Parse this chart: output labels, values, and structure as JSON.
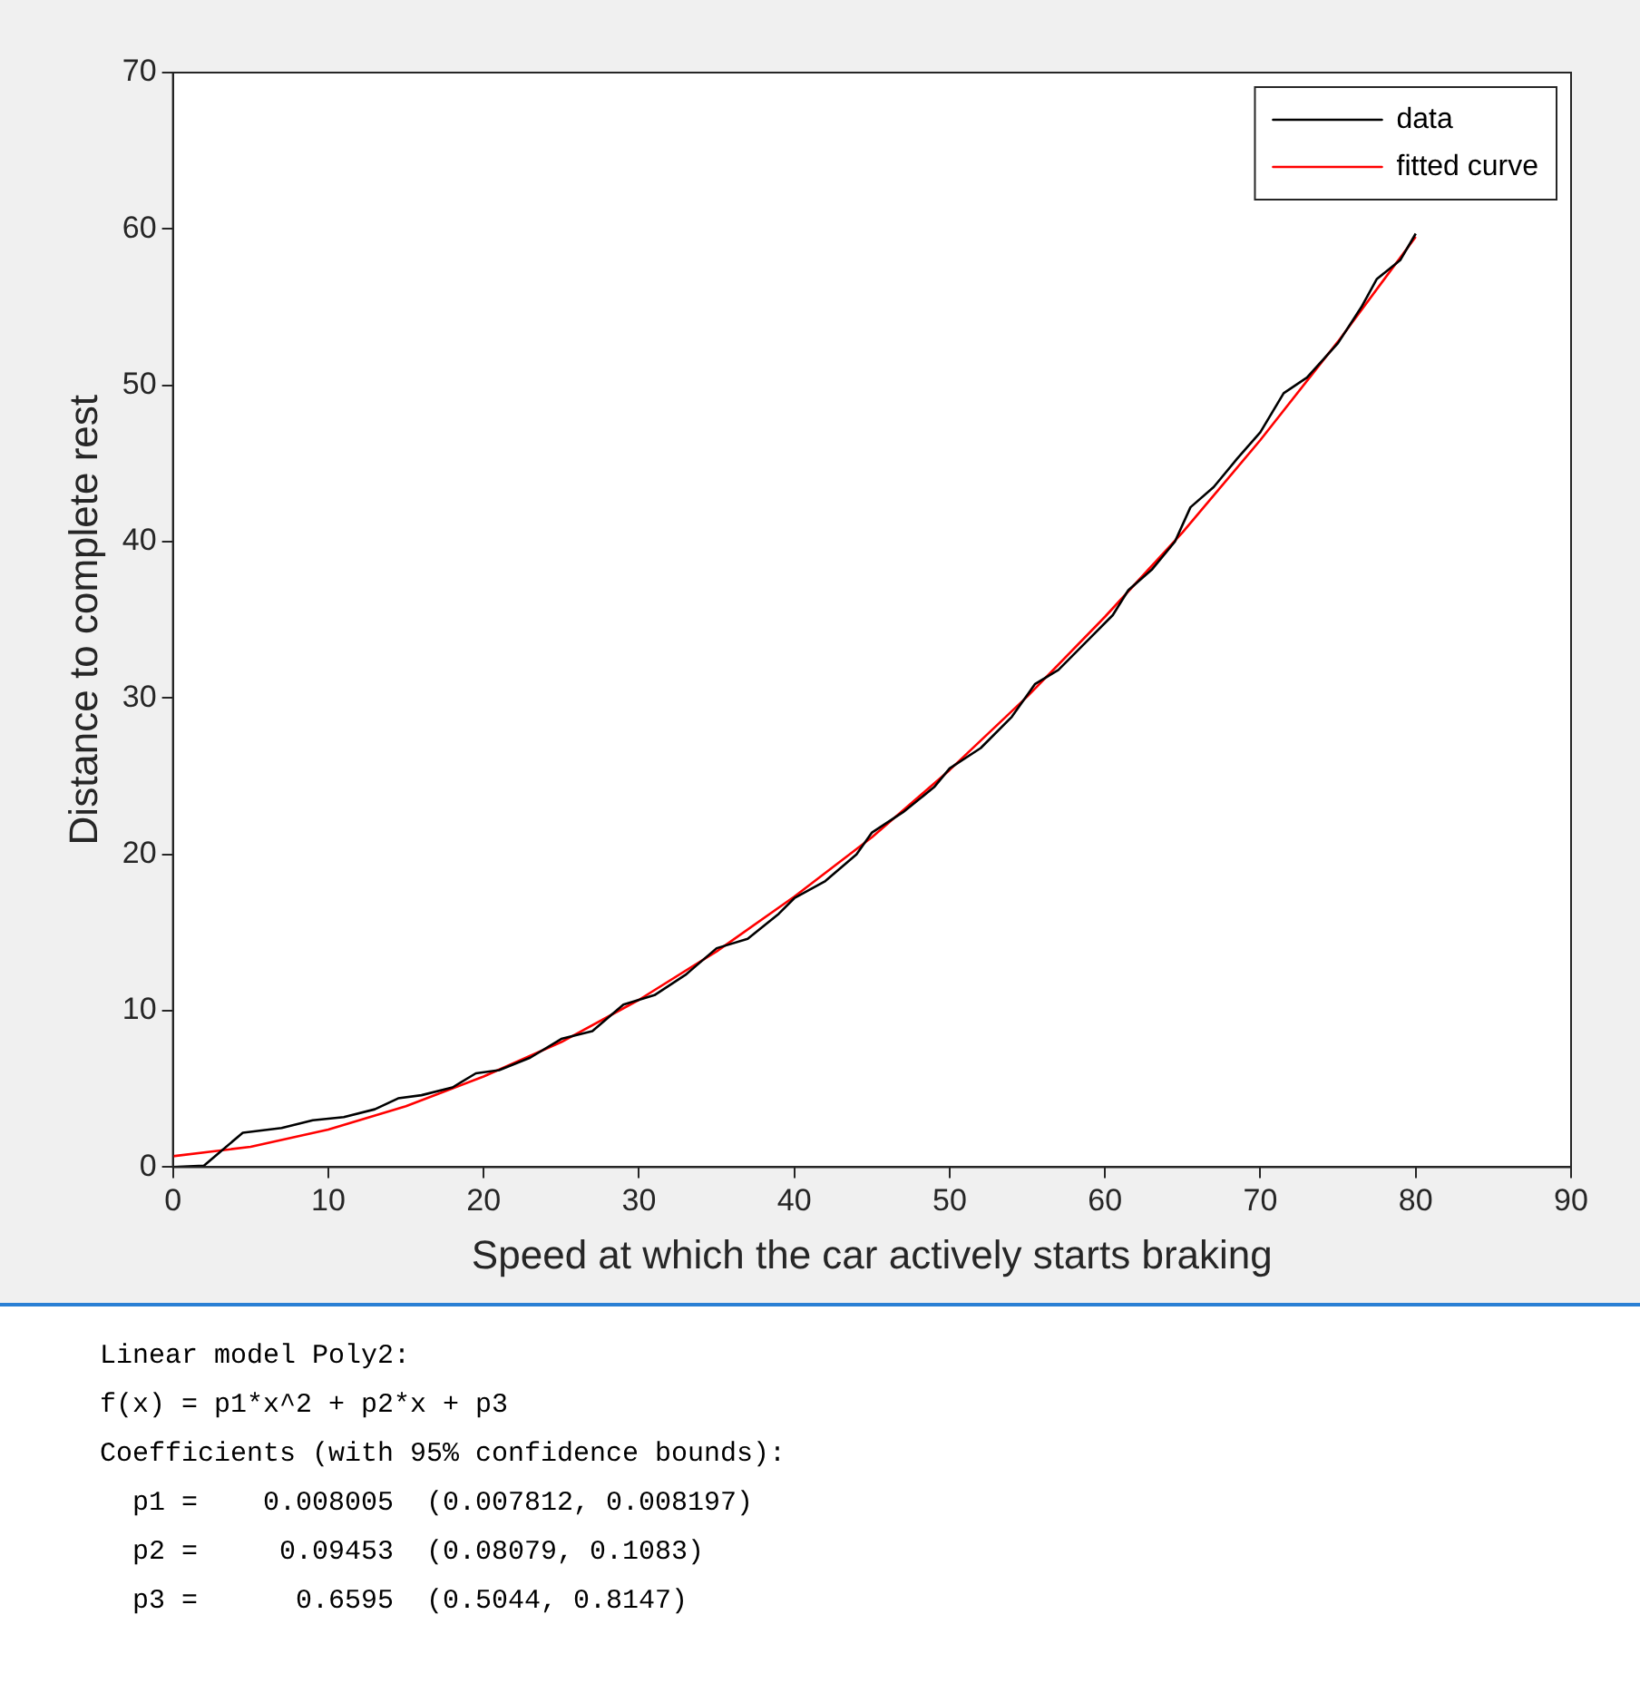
{
  "chart_data": {
    "type": "line",
    "xlabel": "Speed at which the car actively starts braking",
    "ylabel": "Distance to complete rest",
    "xlim": [
      0,
      90
    ],
    "xticks": [
      0,
      10,
      20,
      30,
      40,
      50,
      60,
      70,
      80,
      90
    ],
    "ylim": [
      0,
      70
    ],
    "yticks": [
      0,
      10,
      20,
      30,
      40,
      50,
      60,
      70
    ],
    "grid": false,
    "legend": "top right",
    "marker": "none",
    "series": [
      {
        "name": "data",
        "color": "#000000",
        "x": [
          0,
          2,
          4.5,
          7,
          9,
          11,
          13,
          14.5,
          16,
          18,
          19.5,
          21,
          23,
          25,
          27,
          29,
          31,
          33,
          35,
          37,
          39,
          40,
          42,
          44,
          45,
          47,
          49,
          50,
          52,
          54,
          55.5,
          57,
          59,
          60.5,
          61.5,
          63,
          64.5,
          65.5,
          67,
          68.5,
          70,
          71.5,
          73,
          75,
          76.5,
          77.5,
          79,
          80
        ],
        "values": [
          0,
          0.1,
          2.2,
          2.5,
          3.0,
          3.2,
          3.7,
          4.4,
          4.6,
          5.1,
          6.0,
          6.2,
          7.0,
          8.2,
          8.7,
          10.4,
          11.0,
          12.3,
          14.0,
          14.6,
          16.2,
          17.2,
          18.3,
          20.0,
          21.4,
          22.7,
          24.3,
          25.5,
          26.8,
          28.8,
          30.9,
          31.8,
          33.8,
          35.3,
          36.9,
          38.2,
          40.0,
          42.2,
          43.5,
          45.3,
          47.0,
          49.5,
          50.5,
          52.7,
          55.0,
          56.8,
          58.0,
          59.7
        ]
      },
      {
        "name": "fitted curve",
        "color": "#ff0000",
        "x": [
          0,
          5,
          10,
          15,
          20,
          25,
          30,
          35,
          40,
          45,
          50,
          55,
          60,
          65,
          70,
          75,
          80
        ],
        "values": [
          0.7,
          1.3,
          2.4,
          3.9,
          5.8,
          8.0,
          10.7,
          13.8,
          17.3,
          21.1,
          25.4,
          30.1,
          35.2,
          40.6,
          46.5,
          52.8,
          59.5
        ]
      }
    ],
    "annotations": [
      "Linear model Poly2:",
      "f(x) = p1*x^2 + p2*x + p3",
      "Coefficients (with 95% confidence bounds):",
      "  p1 =    0.008005  (0.007812, 0.008197)",
      "  p2 =     0.09453  (0.08079, 0.1083)",
      "  p3 =      0.6595  (0.5044, 0.8147)"
    ]
  }
}
